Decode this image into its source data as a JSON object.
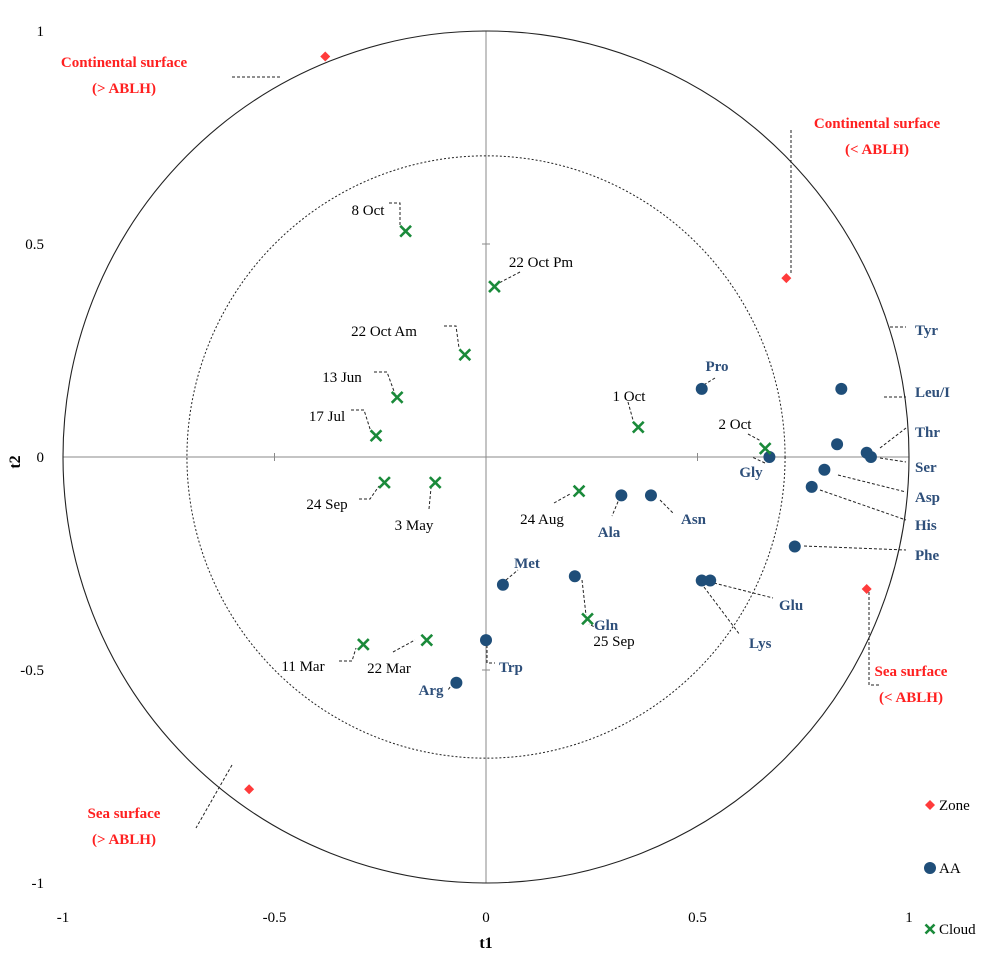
{
  "chart_data": {
    "type": "scatter",
    "title": "",
    "xlabel": "t1",
    "ylabel": "t2",
    "xlim": [
      -1,
      1
    ],
    "ylim": [
      -1,
      1
    ],
    "x_ticks": [
      "-1",
      "-0.5",
      "0",
      "0.5",
      "1"
    ],
    "y_ticks": [
      "1",
      "0.5",
      "0",
      "-0.5",
      "-1"
    ],
    "grid": false,
    "legend_position": "bottom-right",
    "circles": [
      {
        "radius": 1,
        "style": "solid"
      },
      {
        "radius": 0.707,
        "style": "dotted"
      }
    ],
    "colors": {
      "Zone": "#ff3b3b",
      "AA": "#1f4e79",
      "Cloud": "#1a8a3a"
    },
    "series": [
      {
        "name": "Zone",
        "marker": "diamond",
        "points": [
          {
            "label": "Continental surface (> ABLH)",
            "x": -0.38,
            "y": 0.94
          },
          {
            "label": "Continental surface (< ABLH)",
            "x": 0.71,
            "y": 0.42
          },
          {
            "label": "Sea surface (< ABLH)",
            "x": 0.9,
            "y": -0.31
          },
          {
            "label": "Sea surface (> ABLH)",
            "x": -0.56,
            "y": -0.78
          }
        ]
      },
      {
        "name": "AA",
        "marker": "circle",
        "points": [
          {
            "label": "Tyr",
            "x": 0.84,
            "y": 0.16
          },
          {
            "label": "Leu/I",
            "x": 0.83,
            "y": 0.03
          },
          {
            "label": "Thr",
            "x": 0.9,
            "y": 0.01
          },
          {
            "label": "Ser",
            "x": 0.91,
            "y": 0.0
          },
          {
            "label": "Asp",
            "x": 0.8,
            "y": -0.03
          },
          {
            "label": "His",
            "x": 0.77,
            "y": -0.07
          },
          {
            "label": "Phe",
            "x": 0.73,
            "y": -0.21
          },
          {
            "label": "Gly",
            "x": 0.67,
            "y": 0.0
          },
          {
            "label": "Pro",
            "x": 0.51,
            "y": 0.16
          },
          {
            "label": "Asn",
            "x": 0.39,
            "y": -0.09
          },
          {
            "label": "Ala",
            "x": 0.32,
            "y": -0.09
          },
          {
            "label": "Glu",
            "x": 0.53,
            "y": -0.29
          },
          {
            "label": "Lys",
            "x": 0.51,
            "y": -0.29
          },
          {
            "label": "Gln",
            "x": 0.21,
            "y": -0.28
          },
          {
            "label": "Met",
            "x": 0.04,
            "y": -0.3
          },
          {
            "label": "Trp",
            "x": 0.0,
            "y": -0.43
          },
          {
            "label": "Arg",
            "x": -0.07,
            "y": -0.53
          }
        ]
      },
      {
        "name": "Cloud",
        "marker": "x",
        "points": [
          {
            "label": "8 Oct",
            "x": -0.19,
            "y": 0.53
          },
          {
            "label": "22 Oct Pm",
            "x": 0.02,
            "y": 0.4
          },
          {
            "label": "22 Oct Am",
            "x": -0.05,
            "y": 0.24
          },
          {
            "label": "13 Jun",
            "x": -0.21,
            "y": 0.14
          },
          {
            "label": "17 Jul",
            "x": -0.26,
            "y": 0.05
          },
          {
            "label": "1 Oct",
            "x": 0.36,
            "y": 0.07
          },
          {
            "label": "2 Oct",
            "x": 0.66,
            "y": 0.02
          },
          {
            "label": "24 Sep",
            "x": -0.24,
            "y": -0.06
          },
          {
            "label": "3 May",
            "x": -0.12,
            "y": -0.06
          },
          {
            "label": "24 Aug",
            "x": 0.22,
            "y": -0.08
          },
          {
            "label": "25 Sep",
            "x": 0.24,
            "y": -0.38
          },
          {
            "label": "11 Mar",
            "x": -0.29,
            "y": -0.44
          },
          {
            "label": "22 Mar",
            "x": -0.14,
            "y": -0.43
          }
        ]
      }
    ]
  }
}
